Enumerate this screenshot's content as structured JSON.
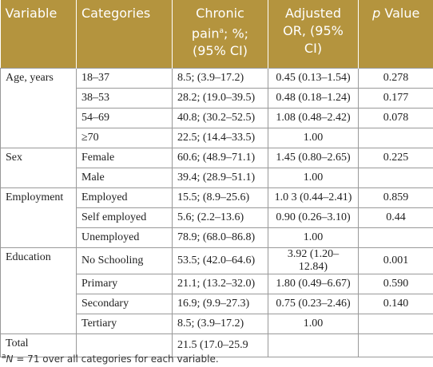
{
  "table": {
    "header": {
      "variable": "Variable",
      "categories": "Categories",
      "chronic_pain": [
        "Chronic pain",
        "a",
        "; %; (95% CI)"
      ],
      "adjusted_or": "Adjusted OR, (95% CI)",
      "p_value": [
        "p",
        " Value"
      ]
    },
    "groups": [
      {
        "variable": "Age, years",
        "rows": [
          {
            "category": "18–37",
            "chronic_pain": "8.5; (3.9–17.2)",
            "adjusted_or": "0.45 (0.13–1.54)",
            "p_value": "0.278"
          },
          {
            "category": "38–53",
            "chronic_pain": "28.2; (19.0–39.5)",
            "adjusted_or": "0.48 (0.18–1.24)",
            "p_value": "0.177"
          },
          {
            "category": "54–69",
            "chronic_pain": "40.8; (30.2–52.5)",
            "adjusted_or": "1.08 (0.48–2.42)",
            "p_value": "0.078"
          },
          {
            "category": "≥70",
            "chronic_pain": "22.5; (14.4–33.5)",
            "adjusted_or": "1.00"
          }
        ]
      },
      {
        "variable": "Sex",
        "rows": [
          {
            "category": "Female",
            "chronic_pain": "60.6; (48.9–71.1)",
            "adjusted_or": "1.45 (0.80–2.65)",
            "p_value": "0.225"
          },
          {
            "category": "Male",
            "chronic_pain": "39.4; (28.9–51.1)",
            "adjusted_or": "1.00"
          }
        ]
      },
      {
        "variable": "Employment",
        "rows": [
          {
            "category": "Employed",
            "chronic_pain": "15.5; (8.9–25.6)",
            "adjusted_or": "1.0 3 (0.44–2.41)",
            "p_value": "0.859"
          },
          {
            "category": "Self employed",
            "chronic_pain": "5.6; (2.2–13.6)",
            "adjusted_or": "0.90 (0.26–3.10)",
            "p_value": "0.44"
          },
          {
            "category": "Unemployed",
            "chronic_pain": "78.9; (68.0–86.8)",
            "adjusted_or": "1.00"
          }
        ]
      },
      {
        "variable": "Education",
        "rows": [
          {
            "category": "No Schooling",
            "chronic_pain": "53.5; (42.0–64.6)",
            "adjusted_or": "3.92 (1.20–12.84)",
            "p_value": "0.001"
          },
          {
            "category": "Primary",
            "chronic_pain": "21.1; (13.2–32.0)",
            "adjusted_or": "1.80 (0.49–6.67)",
            "p_value": "0.590"
          },
          {
            "category": "Secondary",
            "chronic_pain": "16.9; (9.9–27.3)",
            "adjusted_or": "0.75 (0.23–2.46)",
            "p_value": "0.140"
          },
          {
            "category": "Tertiary",
            "chronic_pain": "8.5; (3.9–17.2)",
            "adjusted_or": "1.00"
          }
        ]
      },
      {
        "variable": "Total",
        "rows": [
          {
            "chronic_pain": "21.5 (17.0–25.9"
          }
        ]
      }
    ],
    "footnote": [
      "a",
      "N",
      " = 71 over all categories for each variable."
    ]
  }
}
